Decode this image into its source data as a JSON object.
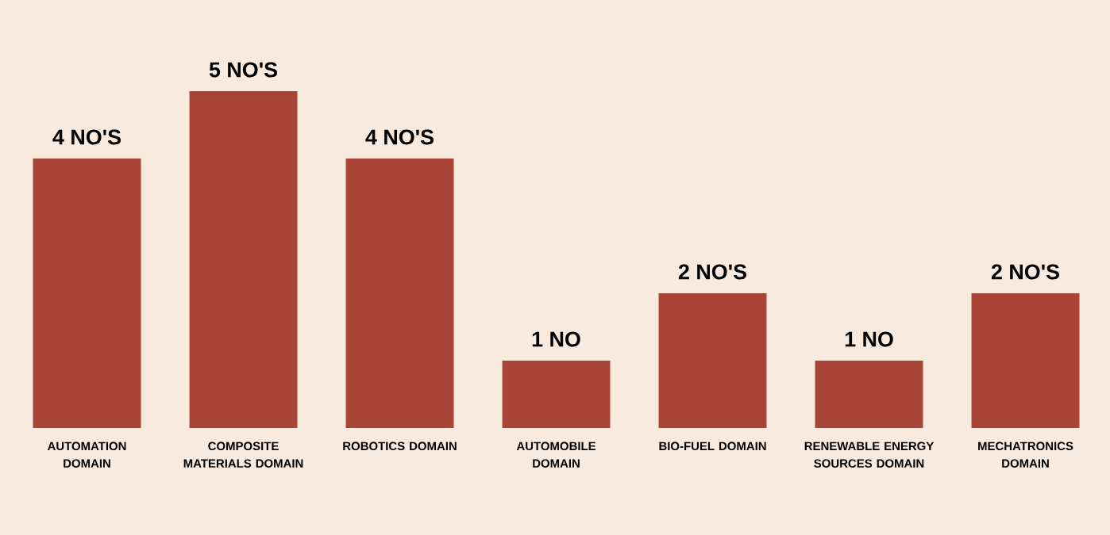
{
  "chart_data": {
    "type": "bar",
    "categories": [
      "AUTOMATION DOMAIN",
      "COMPOSITE MATERIALS DOMAIN",
      "ROBOTICS DOMAIN",
      "AUTOMOBILE DOMAIN",
      "BIO-FUEL DOMAIN",
      "RENEWABLE ENERGY SOURCES DOMAIN",
      "MECHATRONICS DOMAIN"
    ],
    "values": [
      4,
      5,
      4,
      1,
      2,
      1,
      2
    ],
    "value_labels": [
      "4 NO'S",
      "5 NO'S",
      "4 NO'S",
      "1 NO",
      "2 NO'S",
      "1 NO",
      "2 NO'S"
    ],
    "color": "#a84536"
  }
}
